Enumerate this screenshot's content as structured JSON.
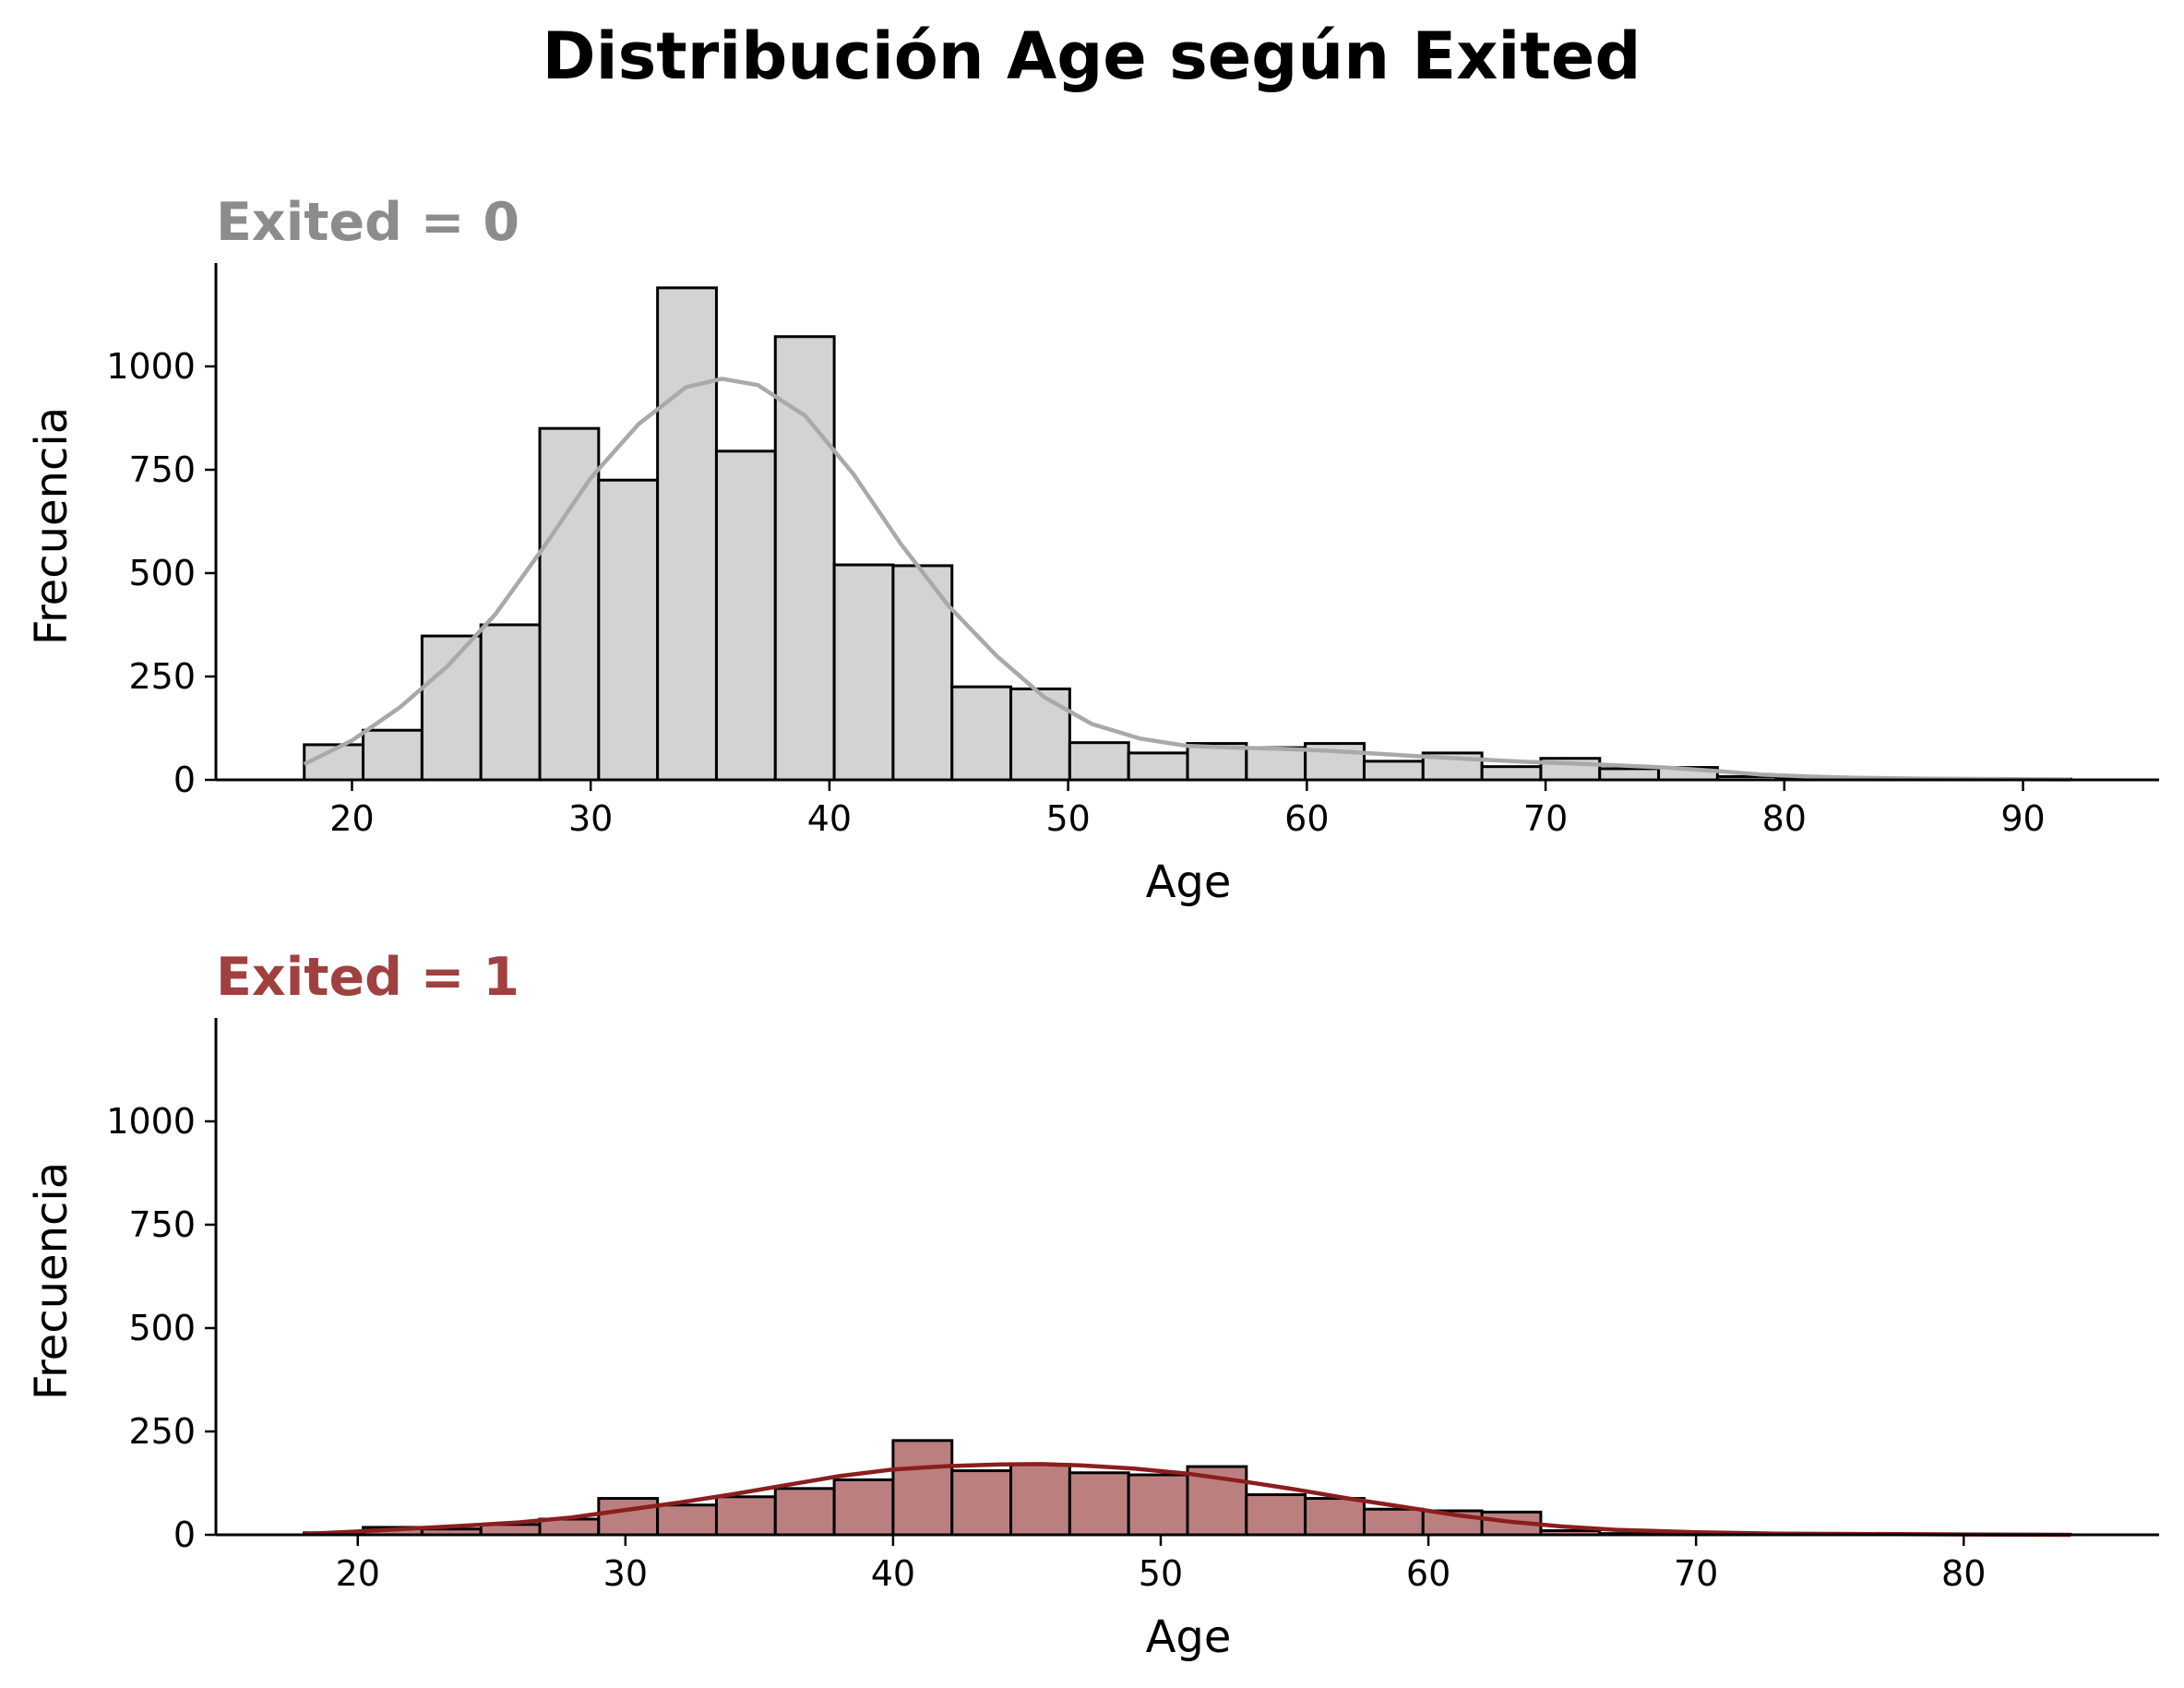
{
  "figure": {
    "title": "Distribución Age según Exited",
    "title_color": "#000000"
  },
  "chart_data": [
    {
      "type": "histogram",
      "panel_title": "Exited = 0",
      "title_color": "#8c8c8c",
      "bar_color": "#d3d3d3",
      "kde_color": "#a9a9a9",
      "xlabel": "Age",
      "ylabel": "Frecuencia",
      "xlim": [
        14.3,
        95.7
      ],
      "ylim": [
        0,
        1250
      ],
      "xticks": [
        20,
        30,
        40,
        50,
        60,
        70,
        80,
        90
      ],
      "yticks": [
        0,
        250,
        500,
        750,
        1000
      ],
      "bin_start": 18,
      "bin_width": 2.4667,
      "counts": [
        85,
        120,
        348,
        375,
        850,
        725,
        1190,
        795,
        1072,
        520,
        518,
        225,
        220,
        90,
        65,
        88,
        78,
        88,
        45,
        65,
        32,
        52,
        27,
        30,
        8,
        3,
        2,
        2,
        1,
        2
      ],
      "kde": {
        "x": [
          18,
          20,
          22,
          24,
          26,
          28,
          30,
          32,
          34,
          35.5,
          37,
          39,
          41,
          43,
          45,
          47,
          49,
          51,
          53,
          55,
          57,
          59,
          61,
          63,
          65,
          67,
          69,
          71,
          73,
          75,
          77,
          79,
          81,
          83,
          86,
          89,
          92
        ],
        "y": [
          38,
          95,
          175,
          275,
          400,
          560,
          730,
          860,
          950,
          970,
          955,
          880,
          740,
          570,
          420,
          300,
          200,
          135,
          100,
          82,
          78,
          75,
          70,
          63,
          56,
          50,
          44,
          40,
          35,
          30,
          22,
          13,
          8,
          5,
          3,
          2,
          1
        ]
      }
    },
    {
      "type": "histogram",
      "panel_title": "Exited = 1",
      "title_color": "#a04040",
      "bar_color": "#bc7f7f",
      "kde_color": "#8b1e1e",
      "xlabel": "Age",
      "ylabel": "Frecuencia",
      "xlim": [
        14.7,
        87.3
      ],
      "ylim": [
        0,
        1250
      ],
      "xticks": [
        20,
        30,
        40,
        50,
        60,
        70,
        80
      ],
      "yticks": [
        0,
        250,
        500,
        750,
        1000
      ],
      "bin_start": 18,
      "bin_width": 2.2,
      "counts": [
        5,
        18,
        14,
        25,
        38,
        88,
        72,
        92,
        112,
        133,
        228,
        155,
        170,
        150,
        145,
        165,
        97,
        88,
        62,
        58,
        55,
        10,
        3,
        2,
        1,
        1,
        0,
        0,
        0,
        1
      ],
      "kde": {
        "x": [
          18,
          20,
          22,
          24,
          26,
          28,
          30,
          32,
          34,
          36,
          38,
          40,
          42,
          44,
          45.5,
          47,
          49,
          51,
          53,
          55,
          57,
          59,
          61,
          63,
          65,
          67,
          70,
          73,
          76,
          80,
          84
        ],
        "y": [
          2,
          8,
          15,
          22,
          30,
          42,
          60,
          78,
          98,
          120,
          142,
          158,
          166,
          170,
          171,
          168,
          160,
          148,
          130,
          110,
          88,
          68,
          48,
          32,
          20,
          12,
          6,
          3,
          2,
          1,
          0
        ]
      }
    }
  ]
}
